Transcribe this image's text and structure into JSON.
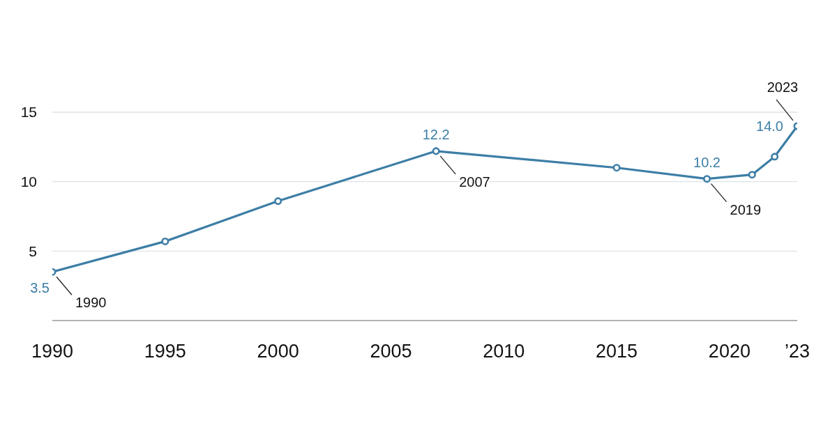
{
  "chart_data": {
    "type": "line",
    "x": [
      1990,
      1995,
      2000,
      2007,
      2015,
      2019,
      2021,
      2022,
      2023
    ],
    "values": [
      3.5,
      5.7,
      8.6,
      12.2,
      11.0,
      10.2,
      10.5,
      11.8,
      14.0
    ],
    "value_labels": [
      "3.5",
      null,
      null,
      "12.2",
      null,
      "10.2",
      null,
      null,
      "14.0"
    ],
    "color": "#3d7ea6",
    "xlim": [
      1990,
      2023
    ],
    "xticks": [
      1990,
      1995,
      2000,
      2005,
      2010,
      2015,
      2020,
      {
        "value": 2023,
        "label": "’23"
      }
    ],
    "ylim": [
      0,
      15
    ],
    "yticks": [
      5,
      10,
      15
    ],
    "grid": "y",
    "marker": "circle",
    "line_style": "solid",
    "annotations": [
      {
        "text": "1990",
        "x": 1990,
        "y": 3.5
      },
      {
        "text": "2007",
        "x": 2007,
        "y": 12.2
      },
      {
        "text": "2019",
        "x": 2019,
        "y": 10.2
      },
      {
        "text": "2023",
        "x": 2023,
        "y": 14.0
      }
    ]
  }
}
